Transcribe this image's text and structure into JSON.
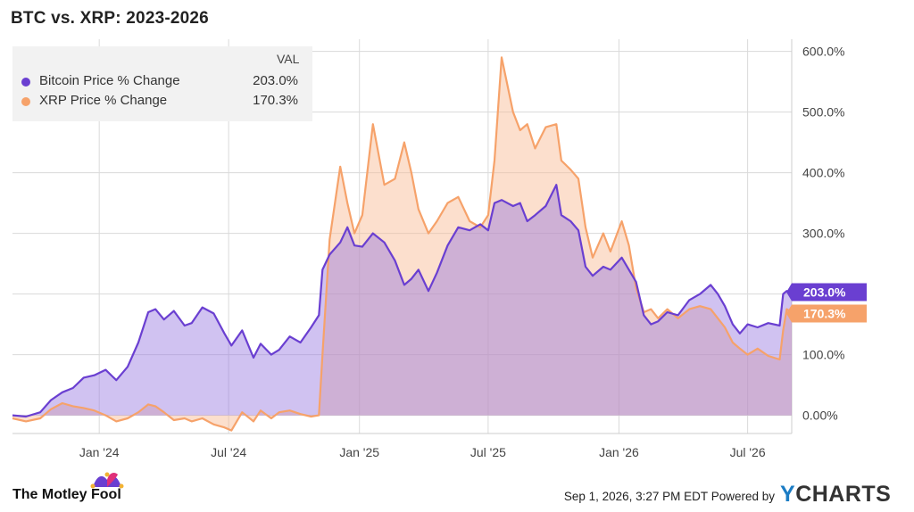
{
  "colors": {
    "btc": "#6a3fd1",
    "xrp": "#f6a26a",
    "grid": "#dadada",
    "legend_bg": "#f2f2f2"
  },
  "legend": {
    "header": "VAL",
    "items": [
      {
        "name": "Bitcoin Price % Change",
        "value": "203.0%"
      },
      {
        "name": "XRP Price % Change",
        "value": "170.3%"
      }
    ]
  },
  "footer": {
    "brand": "The Motley Fool",
    "timestamp": "Sep 1, 2026, 3:27 PM EDT",
    "powered_by": "Powered by",
    "provider": "YCHARTS"
  },
  "chart_data": {
    "type": "area",
    "title": "BTC vs. XRP: 2023-2026",
    "xlabel": "",
    "ylabel": "",
    "x_range": [
      "2023-09-01",
      "2026-09-01"
    ],
    "ylim": [
      -30,
      620
    ],
    "y_ticks": [
      0,
      100,
      200,
      300,
      400,
      500,
      600
    ],
    "y_tick_labels": [
      "0.00%",
      "100.0%",
      "200.0%",
      "300.0%",
      "400.0%",
      "500.0%",
      "600.0%"
    ],
    "x_ticks": [
      "2024-01-01",
      "2024-07-01",
      "2025-01-01",
      "2025-07-01",
      "2026-01-01",
      "2026-07-01"
    ],
    "x_tick_labels": [
      "Jan '24",
      "Jul '24",
      "Jan '25",
      "Jul '25",
      "Jan '26",
      "Jul '26"
    ],
    "grid": true,
    "legend_position": "top-left",
    "end_labels": [
      "203.0%",
      "170.3%"
    ],
    "series": [
      {
        "name": "Bitcoin Price % Change",
        "color": "#6a3fd1",
        "points": [
          [
            "2023-09-01",
            0
          ],
          [
            "2023-09-20",
            -2
          ],
          [
            "2023-10-10",
            5
          ],
          [
            "2023-10-25",
            25
          ],
          [
            "2023-11-10",
            38
          ],
          [
            "2023-11-25",
            45
          ],
          [
            "2023-12-10",
            62
          ],
          [
            "2023-12-25",
            66
          ],
          [
            "2024-01-10",
            75
          ],
          [
            "2024-01-25",
            58
          ],
          [
            "2024-02-10",
            80
          ],
          [
            "2024-02-25",
            120
          ],
          [
            "2024-03-10",
            170
          ],
          [
            "2024-03-20",
            175
          ],
          [
            "2024-04-01",
            158
          ],
          [
            "2024-04-15",
            172
          ],
          [
            "2024-04-30",
            148
          ],
          [
            "2024-05-10",
            152
          ],
          [
            "2024-05-25",
            178
          ],
          [
            "2024-06-10",
            168
          ],
          [
            "2024-06-25",
            135
          ],
          [
            "2024-07-05",
            115
          ],
          [
            "2024-07-20",
            140
          ],
          [
            "2024-08-05",
            95
          ],
          [
            "2024-08-15",
            118
          ],
          [
            "2024-08-30",
            100
          ],
          [
            "2024-09-10",
            108
          ],
          [
            "2024-09-25",
            130
          ],
          [
            "2024-10-10",
            120
          ],
          [
            "2024-10-25",
            145
          ],
          [
            "2024-11-05",
            165
          ],
          [
            "2024-11-10",
            240
          ],
          [
            "2024-11-20",
            265
          ],
          [
            "2024-12-05",
            285
          ],
          [
            "2024-12-15",
            310
          ],
          [
            "2024-12-25",
            280
          ],
          [
            "2025-01-05",
            278
          ],
          [
            "2025-01-20",
            300
          ],
          [
            "2025-02-05",
            285
          ],
          [
            "2025-02-20",
            255
          ],
          [
            "2025-03-05",
            215
          ],
          [
            "2025-03-15",
            225
          ],
          [
            "2025-03-25",
            240
          ],
          [
            "2025-04-08",
            205
          ],
          [
            "2025-04-20",
            235
          ],
          [
            "2025-05-05",
            280
          ],
          [
            "2025-05-20",
            310
          ],
          [
            "2025-06-05",
            305
          ],
          [
            "2025-06-20",
            315
          ],
          [
            "2025-07-01",
            305
          ],
          [
            "2025-07-10",
            350
          ],
          [
            "2025-07-20",
            355
          ],
          [
            "2025-08-05",
            345
          ],
          [
            "2025-08-15",
            350
          ],
          [
            "2025-08-25",
            320
          ],
          [
            "2025-09-05",
            330
          ],
          [
            "2025-09-20",
            345
          ],
          [
            "2025-10-05",
            380
          ],
          [
            "2025-10-12",
            330
          ],
          [
            "2025-10-25",
            320
          ],
          [
            "2025-11-05",
            305
          ],
          [
            "2025-11-15",
            245
          ],
          [
            "2025-11-25",
            230
          ],
          [
            "2025-12-10",
            245
          ],
          [
            "2025-12-20",
            240
          ],
          [
            "2026-01-05",
            260
          ],
          [
            "2026-01-15",
            240
          ],
          [
            "2026-01-25",
            220
          ],
          [
            "2026-02-05",
            165
          ],
          [
            "2026-02-15",
            150
          ],
          [
            "2026-02-25",
            155
          ],
          [
            "2026-03-10",
            170
          ],
          [
            "2026-03-25",
            165
          ],
          [
            "2026-04-10",
            190
          ],
          [
            "2026-04-25",
            200
          ],
          [
            "2026-05-10",
            215
          ],
          [
            "2026-05-20",
            200
          ],
          [
            "2026-05-30",
            180
          ],
          [
            "2026-06-10",
            150
          ],
          [
            "2026-06-20",
            135
          ],
          [
            "2026-07-01",
            150
          ],
          [
            "2026-07-15",
            145
          ],
          [
            "2026-07-30",
            152
          ],
          [
            "2026-08-15",
            148
          ],
          [
            "2026-08-20",
            200
          ],
          [
            "2026-08-25",
            205
          ],
          [
            "2026-09-01",
            203
          ]
        ]
      },
      {
        "name": "XRP Price % Change",
        "color": "#f6a26a",
        "points": [
          [
            "2023-09-01",
            -5
          ],
          [
            "2023-09-20",
            -10
          ],
          [
            "2023-10-10",
            -5
          ],
          [
            "2023-10-25",
            10
          ],
          [
            "2023-11-10",
            20
          ],
          [
            "2023-11-25",
            15
          ],
          [
            "2023-12-10",
            12
          ],
          [
            "2023-12-25",
            8
          ],
          [
            "2024-01-10",
            0
          ],
          [
            "2024-01-25",
            -10
          ],
          [
            "2024-02-10",
            -5
          ],
          [
            "2024-02-25",
            5
          ],
          [
            "2024-03-10",
            18
          ],
          [
            "2024-03-20",
            15
          ],
          [
            "2024-04-01",
            5
          ],
          [
            "2024-04-15",
            -8
          ],
          [
            "2024-04-30",
            -5
          ],
          [
            "2024-05-10",
            -10
          ],
          [
            "2024-05-25",
            -5
          ],
          [
            "2024-06-10",
            -15
          ],
          [
            "2024-06-25",
            -20
          ],
          [
            "2024-07-05",
            -25
          ],
          [
            "2024-07-20",
            5
          ],
          [
            "2024-08-05",
            -10
          ],
          [
            "2024-08-15",
            8
          ],
          [
            "2024-08-30",
            -5
          ],
          [
            "2024-09-10",
            5
          ],
          [
            "2024-09-25",
            8
          ],
          [
            "2024-10-10",
            2
          ],
          [
            "2024-10-25",
            -2
          ],
          [
            "2024-11-05",
            0
          ],
          [
            "2024-11-10",
            100
          ],
          [
            "2024-11-20",
            290
          ],
          [
            "2024-12-05",
            410
          ],
          [
            "2024-12-15",
            350
          ],
          [
            "2024-12-25",
            300
          ],
          [
            "2025-01-05",
            330
          ],
          [
            "2025-01-20",
            480
          ],
          [
            "2025-02-05",
            380
          ],
          [
            "2025-02-20",
            390
          ],
          [
            "2025-03-05",
            450
          ],
          [
            "2025-03-15",
            400
          ],
          [
            "2025-03-25",
            340
          ],
          [
            "2025-04-08",
            300
          ],
          [
            "2025-04-20",
            320
          ],
          [
            "2025-05-05",
            350
          ],
          [
            "2025-05-20",
            360
          ],
          [
            "2025-06-05",
            320
          ],
          [
            "2025-06-20",
            310
          ],
          [
            "2025-07-01",
            330
          ],
          [
            "2025-07-10",
            420
          ],
          [
            "2025-07-20",
            590
          ],
          [
            "2025-08-05",
            500
          ],
          [
            "2025-08-15",
            470
          ],
          [
            "2025-08-25",
            480
          ],
          [
            "2025-09-05",
            440
          ],
          [
            "2025-09-20",
            475
          ],
          [
            "2025-10-05",
            480
          ],
          [
            "2025-10-12",
            420
          ],
          [
            "2025-10-25",
            405
          ],
          [
            "2025-11-05",
            390
          ],
          [
            "2025-11-15",
            310
          ],
          [
            "2025-11-25",
            260
          ],
          [
            "2025-12-10",
            300
          ],
          [
            "2025-12-20",
            270
          ],
          [
            "2026-01-05",
            320
          ],
          [
            "2026-01-15",
            280
          ],
          [
            "2026-01-25",
            210
          ],
          [
            "2026-02-05",
            170
          ],
          [
            "2026-02-15",
            175
          ],
          [
            "2026-02-25",
            160
          ],
          [
            "2026-03-10",
            175
          ],
          [
            "2026-03-25",
            160
          ],
          [
            "2026-04-10",
            175
          ],
          [
            "2026-04-25",
            180
          ],
          [
            "2026-05-10",
            175
          ],
          [
            "2026-05-20",
            160
          ],
          [
            "2026-05-30",
            145
          ],
          [
            "2026-06-10",
            120
          ],
          [
            "2026-06-20",
            110
          ],
          [
            "2026-07-01",
            100
          ],
          [
            "2026-07-15",
            110
          ],
          [
            "2026-07-30",
            98
          ],
          [
            "2026-08-15",
            92
          ],
          [
            "2026-08-20",
            140
          ],
          [
            "2026-08-25",
            175
          ],
          [
            "2026-09-01",
            170
          ]
        ]
      }
    ]
  }
}
